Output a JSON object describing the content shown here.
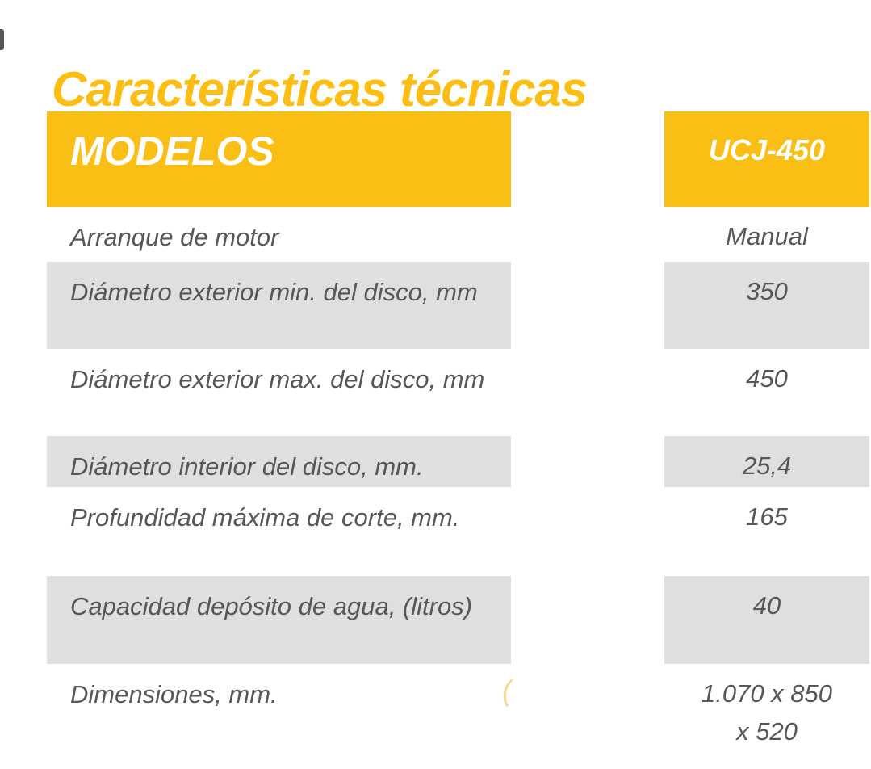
{
  "page": {
    "title": "Características técnicas"
  },
  "table": {
    "header": {
      "models_label": "MODELOS",
      "model_name": "UCJ-450"
    },
    "rows": [
      {
        "label": "Arranque de motor",
        "value": "Manual",
        "shaded": false
      },
      {
        "label": "Diámetro exterior min. del disco, mm",
        "value": "350",
        "shaded": true
      },
      {
        "label": "Diámetro exterior max. del disco, mm",
        "value": "450",
        "shaded": false
      },
      {
        "label": "Diámetro interior del disco, mm.",
        "value": "25,4",
        "shaded": true
      },
      {
        "label": "Profundidad máxima de corte, mm.",
        "value": "165",
        "shaded": false
      },
      {
        "label": "Capacidad depósito de agua, (litros)",
        "value": "40",
        "shaded": true
      },
      {
        "label": "Dimensiones, mm.",
        "value": "1.070 x 850\nx 520",
        "shaded": false
      }
    ]
  },
  "artifacts": {
    "partial_parenthesis": "("
  },
  "colors": {
    "accent_yellow": "#F9BF15",
    "title_yellow": "#FDBE14",
    "row_gray": "#DFDFDF",
    "text_gray": "#55575A",
    "header_text": "#FFFFFF"
  }
}
